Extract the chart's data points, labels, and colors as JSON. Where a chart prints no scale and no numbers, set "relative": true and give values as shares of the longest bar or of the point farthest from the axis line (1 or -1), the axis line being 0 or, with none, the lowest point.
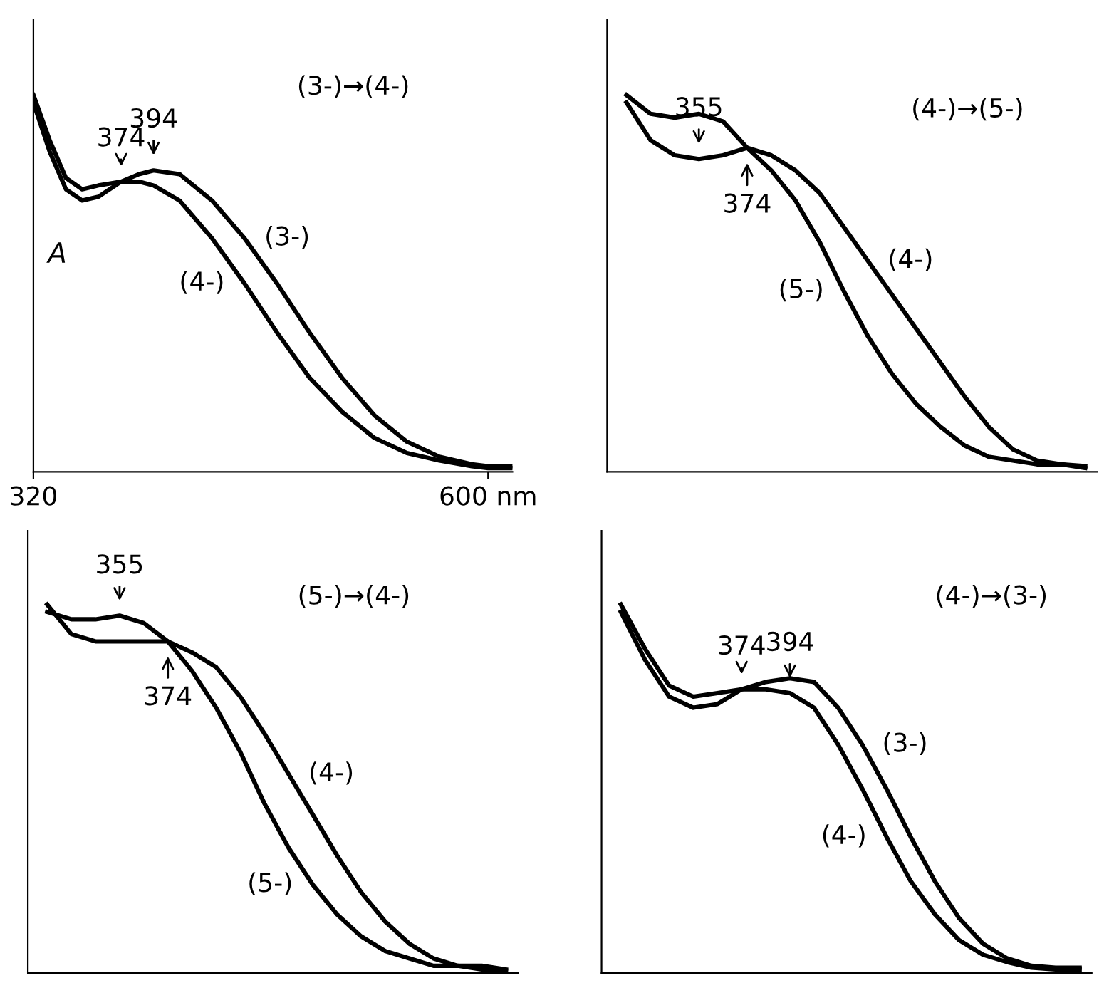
{
  "chart_data": [
    {
      "type": "line",
      "relative": true,
      "ylabel": "A",
      "x": [
        320,
        330,
        340,
        350,
        360,
        374,
        385,
        394,
        410,
        430,
        450,
        470,
        490,
        510,
        530,
        550,
        570,
        590,
        600,
        615
      ],
      "xlim": [
        320,
        615
      ],
      "xticks": [
        320,
        {
          "value": 600,
          "label": "600 nm"
        }
      ],
      "tick_labels": "x",
      "series": [
        {
          "name": "(3-)",
          "color": "#000000",
          "values": [
            0.98,
            0.85,
            0.75,
            0.72,
            0.73,
            0.77,
            0.79,
            0.8,
            0.79,
            0.72,
            0.62,
            0.5,
            0.37,
            0.25,
            0.15,
            0.08,
            0.04,
            0.02,
            0.015,
            0.015
          ]
        },
        {
          "name": "(4-)",
          "color": "#000000",
          "values": [
            1.0,
            0.88,
            0.78,
            0.75,
            0.76,
            0.77,
            0.77,
            0.76,
            0.72,
            0.62,
            0.5,
            0.37,
            0.25,
            0.16,
            0.09,
            0.05,
            0.03,
            0.015,
            0.01,
            0.01
          ]
        }
      ],
      "annotations": [
        "374",
        "394",
        "(3-)→(4-)"
      ]
    },
    {
      "type": "line",
      "relative": true,
      "categories": [
        null,
        null,
        null,
        null,
        null,
        null,
        null,
        null,
        null,
        null,
        null,
        null,
        null,
        null,
        null,
        null,
        null,
        null,
        null,
        null
      ],
      "tick_labels": false,
      "series": [
        {
          "name": "(4-)",
          "color": "#000000",
          "values": [
            0.98,
            0.88,
            0.84,
            0.83,
            0.84,
            0.86,
            0.84,
            0.8,
            0.74,
            0.65,
            0.56,
            0.47,
            0.38,
            0.29,
            0.2,
            0.12,
            0.06,
            0.03,
            0.02,
            0.015
          ]
        },
        {
          "name": "(5-)",
          "color": "#000000",
          "values": [
            1.0,
            0.95,
            0.94,
            0.95,
            0.93,
            0.86,
            0.8,
            0.72,
            0.61,
            0.48,
            0.36,
            0.26,
            0.18,
            0.12,
            0.07,
            0.04,
            0.03,
            0.02,
            0.02,
            0.01
          ]
        }
      ],
      "annotations": [
        "355",
        "374",
        "(4-)→(5-)"
      ]
    },
    {
      "type": "line",
      "relative": true,
      "categories": [
        null,
        null,
        null,
        null,
        null,
        null,
        null,
        null,
        null,
        null,
        null,
        null,
        null,
        null,
        null,
        null,
        null,
        null,
        null,
        null
      ],
      "tick_labels": false,
      "series": [
        {
          "name": "(5-)",
          "color": "#000000",
          "values": [
            0.98,
            0.96,
            0.96,
            0.97,
            0.95,
            0.9,
            0.82,
            0.72,
            0.6,
            0.46,
            0.34,
            0.24,
            0.16,
            0.1,
            0.06,
            0.04,
            0.02,
            0.02,
            0.01,
            0.005
          ]
        },
        {
          "name": "(4-)",
          "color": "#000000",
          "values": [
            1.0,
            0.92,
            0.9,
            0.9,
            0.9,
            0.9,
            0.87,
            0.83,
            0.75,
            0.65,
            0.54,
            0.43,
            0.32,
            0.22,
            0.14,
            0.08,
            0.04,
            0.02,
            0.02,
            0.01
          ]
        }
      ],
      "annotations": [
        "355",
        "374",
        "(5-)→(4-)"
      ]
    },
    {
      "type": "line",
      "relative": true,
      "categories": [
        null,
        null,
        null,
        null,
        null,
        null,
        null,
        null,
        null,
        null,
        null,
        null,
        null,
        null,
        null,
        null,
        null,
        null,
        null,
        null
      ],
      "tick_labels": false,
      "series": [
        {
          "name": "(4-)",
          "color": "#000000",
          "values": [
            1.0,
            0.88,
            0.78,
            0.75,
            0.76,
            0.77,
            0.77,
            0.76,
            0.72,
            0.62,
            0.5,
            0.37,
            0.25,
            0.16,
            0.09,
            0.05,
            0.03,
            0.015,
            0.01,
            0.01
          ]
        },
        {
          "name": "(3-)",
          "color": "#000000",
          "values": [
            0.98,
            0.85,
            0.75,
            0.72,
            0.73,
            0.77,
            0.79,
            0.8,
            0.79,
            0.72,
            0.62,
            0.5,
            0.37,
            0.25,
            0.15,
            0.08,
            0.04,
            0.02,
            0.015,
            0.015
          ]
        }
      ],
      "annotations": [
        "374",
        "394",
        "(4-)→(3-)"
      ]
    }
  ]
}
